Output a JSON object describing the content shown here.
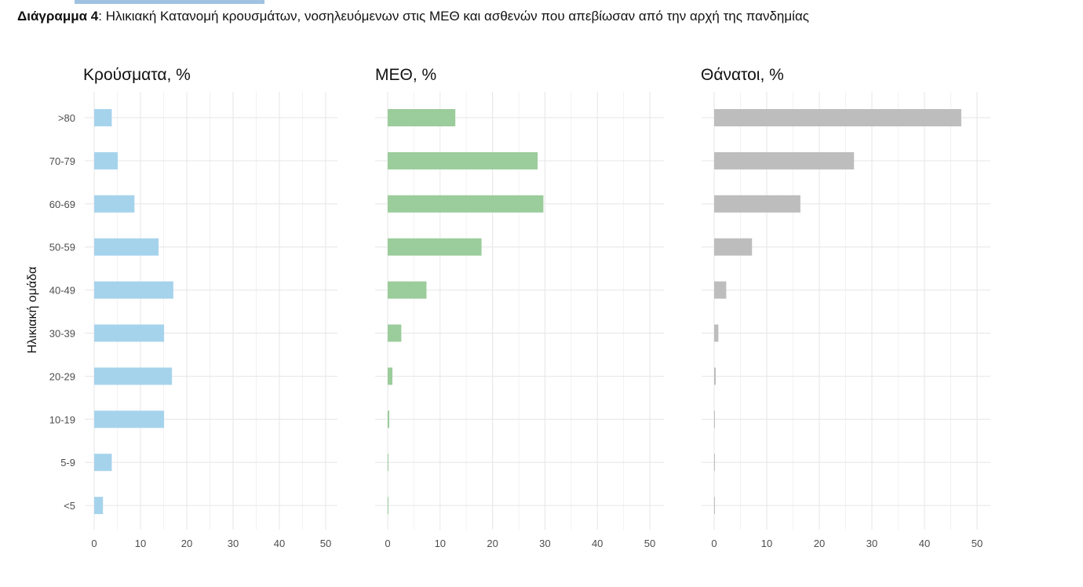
{
  "caption": {
    "label": "Διάγραμμα 4",
    "text": ": Ηλικιακή Κατανομή κρουσμάτων, νοσηλευόμενων στις ΜΕΘ και ασθενών που απεβίωσαν από την αρχή της πανδημίας"
  },
  "chart_data": {
    "type": "bar",
    "orientation": "horizontal",
    "ylabel": "Ηλικιακή ομάδα",
    "categories": [
      ">80",
      "70-79",
      "60-69",
      "50-59",
      "40-49",
      "30-39",
      "20-29",
      "10-19",
      "5-9",
      "<5"
    ],
    "xlim": [
      0,
      52
    ],
    "xticks": [
      0,
      10,
      20,
      30,
      40,
      50
    ],
    "grid": true,
    "panels": [
      {
        "title": "Κρούσματα, %",
        "color": "#a6d3ec",
        "values": [
          3.8,
          5.1,
          8.7,
          13.9,
          17.1,
          15.1,
          16.8,
          15.1,
          3.8,
          1.9
        ]
      },
      {
        "title": "ΜΕΘ, %",
        "color": "#9bcc9b",
        "values": [
          12.9,
          28.6,
          29.7,
          17.9,
          7.4,
          2.6,
          0.9,
          0.3,
          0.1,
          0.1
        ]
      },
      {
        "title": "Θάνατοι, %",
        "color": "#bdbdbd",
        "values": [
          47.0,
          26.6,
          16.4,
          7.2,
          2.3,
          0.8,
          0.3,
          0.1,
          0.05,
          0.05
        ]
      }
    ]
  }
}
